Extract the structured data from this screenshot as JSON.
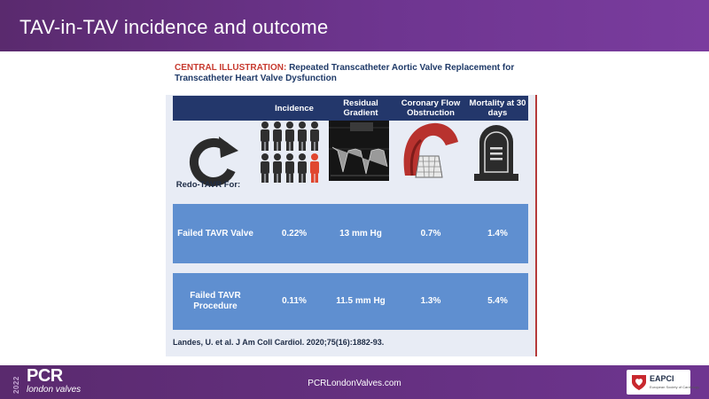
{
  "slide": {
    "title": "TAV-in-TAV  incidence and outcome"
  },
  "figure": {
    "header_prefix": "CENTRAL ILLUSTRATION:",
    "header_text": "Repeated Transcatheter Aortic Valve Replacement for Transcatheter Heart Valve Dysfunction",
    "columns": [
      {
        "label": "Incidence"
      },
      {
        "label": "Residual Gradient"
      },
      {
        "label": "Coronary Flow Obstruction"
      },
      {
        "label": "Mortality at 30 days"
      }
    ],
    "redo_label": "Redo-TAVR For:",
    "rows": [
      {
        "label": "Failed TAVR Valve",
        "incidence": "0.22%",
        "gradient": "13 mm Hg",
        "coronary": "0.7%",
        "mortality": "1.4%"
      },
      {
        "label": "Failed TAVR Procedure",
        "incidence": "0.11%",
        "gradient": "11.5 mm Hg",
        "coronary": "1.3%",
        "mortality": "5.4%"
      }
    ],
    "citation": "Landes, U. et al. J Am Coll Cardiol. 2020;75(16):1882-93.",
    "colors": {
      "header_band": "#23376b",
      "row_band": "#5f8fd0",
      "highlight_person": "#e0472f"
    }
  },
  "footer": {
    "year": "2022",
    "logo": "PCR",
    "logo_sub": "london valves",
    "url": "PCRLondonValves.com",
    "partner_logo": "EAPCI",
    "partner_sub": "European Society of Cardiology"
  }
}
